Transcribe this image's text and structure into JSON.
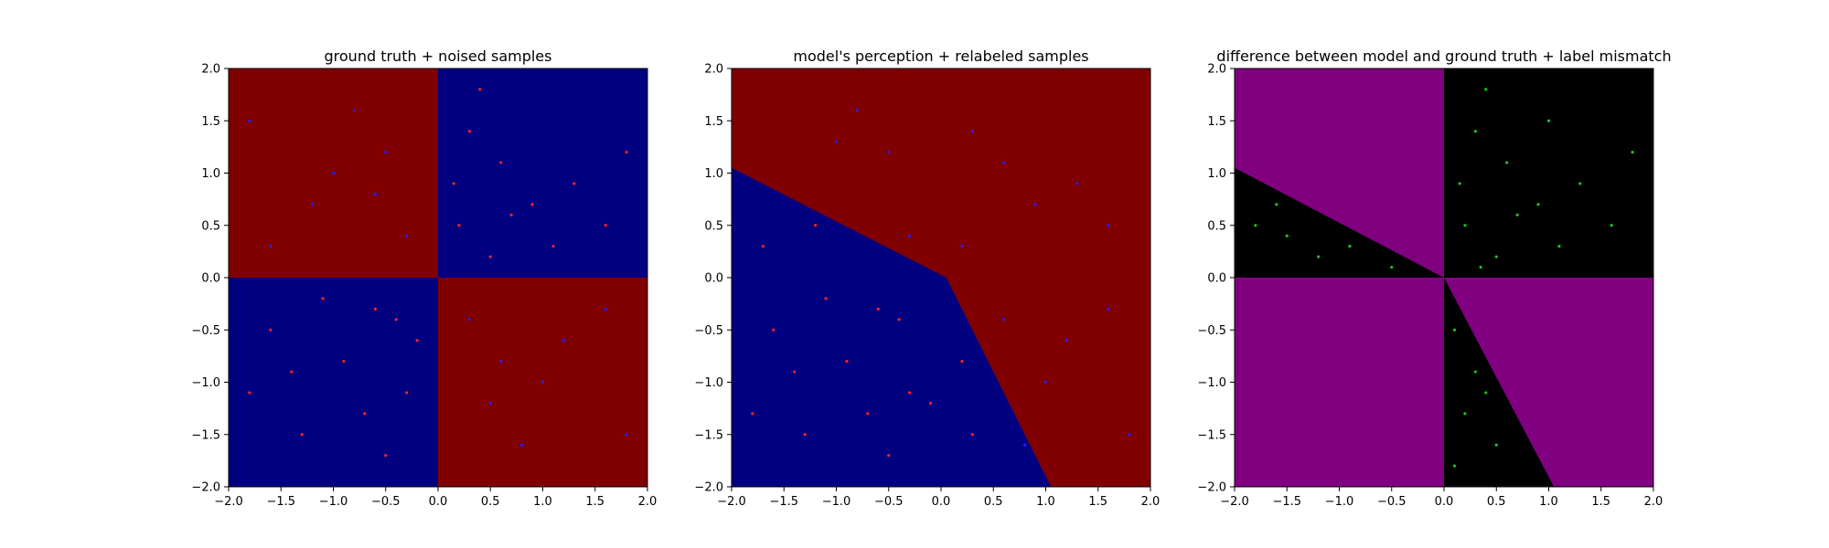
{
  "chart_data": [
    {
      "type": "scatter",
      "title": "ground truth + noised samples",
      "xlim": [
        -2.0,
        2.0
      ],
      "ylim": [
        -2.0,
        2.0
      ],
      "xticks": [
        "−2.0",
        "−1.5",
        "−1.0",
        "−0.5",
        "0.0",
        "0.5",
        "1.0",
        "1.5",
        "2.0"
      ],
      "yticks": [
        "−2.0",
        "−1.5",
        "−1.0",
        "−0.5",
        "0.0",
        "0.5",
        "1.0",
        "1.5",
        "2.0"
      ],
      "regions": [
        {
          "color": "#800000",
          "polygon": [
            [
              -2.0,
              0.0
            ],
            [
              0.0,
              0.0
            ],
            [
              0.0,
              2.0
            ],
            [
              -2.0,
              2.0
            ]
          ]
        },
        {
          "color": "#000080",
          "polygon": [
            [
              0.0,
              0.0
            ],
            [
              2.0,
              0.0
            ],
            [
              2.0,
              2.0
            ],
            [
              0.0,
              2.0
            ]
          ]
        },
        {
          "color": "#000080",
          "polygon": [
            [
              -2.0,
              -2.0
            ],
            [
              0.0,
              -2.0
            ],
            [
              0.0,
              0.0
            ],
            [
              -2.0,
              0.0
            ]
          ]
        },
        {
          "color": "#800000",
          "polygon": [
            [
              0.0,
              -2.0
            ],
            [
              2.0,
              -2.0
            ],
            [
              2.0,
              0.0
            ],
            [
              0.0,
              0.0
            ]
          ]
        }
      ],
      "series": [
        {
          "color": "#ff2020",
          "points": [
            [
              0.3,
              1.4
            ],
            [
              0.6,
              1.1
            ],
            [
              0.9,
              0.7
            ],
            [
              0.2,
              0.5
            ],
            [
              1.3,
              0.9
            ],
            [
              0.5,
              0.2
            ],
            [
              1.6,
              0.5
            ],
            [
              0.4,
              1.8
            ],
            [
              1.1,
              0.3
            ],
            [
              0.7,
              0.6
            ],
            [
              1.8,
              1.2
            ],
            [
              0.15,
              0.9
            ],
            [
              -0.6,
              -0.3
            ],
            [
              -0.9,
              -0.8
            ],
            [
              -1.3,
              -1.5
            ],
            [
              -0.3,
              -1.1
            ],
            [
              -1.6,
              -0.5
            ],
            [
              -0.5,
              -1.7
            ],
            [
              -1.1,
              -0.2
            ],
            [
              -0.7,
              -1.3
            ],
            [
              -1.8,
              -1.1
            ],
            [
              -0.2,
              -0.6
            ],
            [
              -1.4,
              -0.9
            ],
            [
              -0.4,
              -0.4
            ]
          ]
        },
        {
          "color": "#2020ff",
          "points": [
            [
              -0.5,
              1.2
            ],
            [
              -1.2,
              0.7
            ],
            [
              -0.8,
              1.6
            ],
            [
              -1.6,
              0.3
            ],
            [
              -0.3,
              0.4
            ],
            [
              -1.0,
              1.0
            ],
            [
              -1.8,
              1.5
            ],
            [
              -0.6,
              0.8
            ],
            [
              0.5,
              -1.2
            ],
            [
              1.2,
              -0.6
            ],
            [
              0.8,
              -1.6
            ],
            [
              1.6,
              -0.3
            ],
            [
              0.3,
              -0.4
            ],
            [
              1.0,
              -1.0
            ],
            [
              1.8,
              -1.5
            ],
            [
              0.6,
              -0.8
            ]
          ]
        }
      ]
    },
    {
      "type": "scatter",
      "title": "model's perception + relabeled samples",
      "xlim": [
        -2.0,
        2.0
      ],
      "ylim": [
        -2.0,
        2.0
      ],
      "xticks": [
        "−2.0",
        "−1.5",
        "−1.0",
        "−0.5",
        "0.0",
        "0.5",
        "1.0",
        "1.5",
        "2.0"
      ],
      "yticks": [
        "−2.0",
        "−1.5",
        "−1.0",
        "−0.5",
        "0.0",
        "0.5",
        "1.0",
        "1.5",
        "2.0"
      ],
      "regions": [
        {
          "color": "#800000",
          "polygon": [
            [
              -2.0,
              -2.0
            ],
            [
              2.0,
              -2.0
            ],
            [
              2.0,
              2.0
            ],
            [
              -2.0,
              2.0
            ]
          ]
        },
        {
          "color": "#000080",
          "polygon": [
            [
              -2.0,
              -2.0
            ],
            [
              1.05,
              -2.0
            ],
            [
              0.05,
              0.0
            ],
            [
              -2.0,
              1.05
            ]
          ]
        }
      ],
      "series": [
        {
          "color": "#ff2020",
          "points": [
            [
              -0.6,
              -0.3
            ],
            [
              -0.9,
              -0.8
            ],
            [
              -1.3,
              -1.5
            ],
            [
              -0.3,
              -1.1
            ],
            [
              -1.6,
              -0.5
            ],
            [
              -0.5,
              -1.7
            ],
            [
              -1.1,
              -0.2
            ],
            [
              -0.7,
              -1.3
            ],
            [
              -1.4,
              -0.9
            ],
            [
              -0.4,
              -0.4
            ],
            [
              -1.7,
              0.3
            ],
            [
              -1.2,
              0.5
            ],
            [
              0.2,
              -0.8
            ],
            [
              0.3,
              -1.5
            ],
            [
              -0.1,
              -1.2
            ],
            [
              -1.8,
              -1.3
            ]
          ]
        },
        {
          "color": "#2020ff",
          "points": [
            [
              0.3,
              1.4
            ],
            [
              0.6,
              1.1
            ],
            [
              0.9,
              0.7
            ],
            [
              1.3,
              0.9
            ],
            [
              1.6,
              0.5
            ],
            [
              -0.5,
              1.2
            ],
            [
              -0.8,
              1.6
            ],
            [
              -0.3,
              0.4
            ],
            [
              1.2,
              -0.6
            ],
            [
              1.6,
              -0.3
            ],
            [
              0.8,
              -1.6
            ],
            [
              1.8,
              -1.5
            ],
            [
              0.6,
              -0.4
            ],
            [
              1.0,
              -1.0
            ],
            [
              -1.0,
              1.3
            ],
            [
              0.2,
              0.3
            ]
          ]
        }
      ]
    },
    {
      "type": "scatter",
      "title": "difference between model and ground truth + label mismatch",
      "xlim": [
        -2.0,
        2.0
      ],
      "ylim": [
        -2.0,
        2.0
      ],
      "xticks": [
        "−2.0",
        "−1.5",
        "−1.0",
        "−0.5",
        "0.0",
        "0.5",
        "1.0",
        "1.5",
        "2.0"
      ],
      "yticks": [
        "−2.0",
        "−1.5",
        "−1.0",
        "−0.5",
        "0.0",
        "0.5",
        "1.0",
        "1.5",
        "2.0"
      ],
      "regions": [
        {
          "color": "#800080",
          "polygon": [
            [
              -2.0,
              -2.0
            ],
            [
              2.0,
              -2.0
            ],
            [
              2.0,
              2.0
            ],
            [
              -2.0,
              2.0
            ]
          ]
        },
        {
          "color": "#000000",
          "polygon": [
            [
              0.0,
              0.0
            ],
            [
              2.0,
              0.0
            ],
            [
              2.0,
              2.0
            ],
            [
              0.0,
              2.0
            ]
          ]
        },
        {
          "color": "#000000",
          "polygon": [
            [
              -2.0,
              0.0
            ],
            [
              0.0,
              0.0
            ],
            [
              -2.0,
              1.05
            ]
          ]
        },
        {
          "color": "#000000",
          "polygon": [
            [
              0.0,
              -2.0
            ],
            [
              1.05,
              -2.0
            ],
            [
              0.0,
              0.0
            ]
          ]
        }
      ],
      "series": [
        {
          "color": "#20c020",
          "points": [
            [
              0.3,
              1.4
            ],
            [
              0.6,
              1.1
            ],
            [
              0.9,
              0.7
            ],
            [
              0.2,
              0.5
            ],
            [
              1.3,
              0.9
            ],
            [
              0.5,
              0.2
            ],
            [
              1.6,
              0.5
            ],
            [
              0.4,
              1.8
            ],
            [
              1.1,
              0.3
            ],
            [
              0.7,
              0.6
            ],
            [
              1.8,
              1.2
            ],
            [
              0.15,
              0.9
            ],
            [
              1.0,
              1.5
            ],
            [
              0.35,
              0.1
            ],
            [
              -1.8,
              0.5
            ],
            [
              -1.5,
              0.4
            ],
            [
              -1.2,
              0.2
            ],
            [
              -0.9,
              0.3
            ],
            [
              -1.6,
              0.7
            ],
            [
              -0.5,
              0.1
            ],
            [
              0.1,
              -0.5
            ],
            [
              0.3,
              -0.9
            ],
            [
              0.2,
              -1.3
            ],
            [
              0.5,
              -1.6
            ],
            [
              0.1,
              -1.8
            ],
            [
              0.4,
              -1.1
            ]
          ]
        }
      ]
    }
  ]
}
